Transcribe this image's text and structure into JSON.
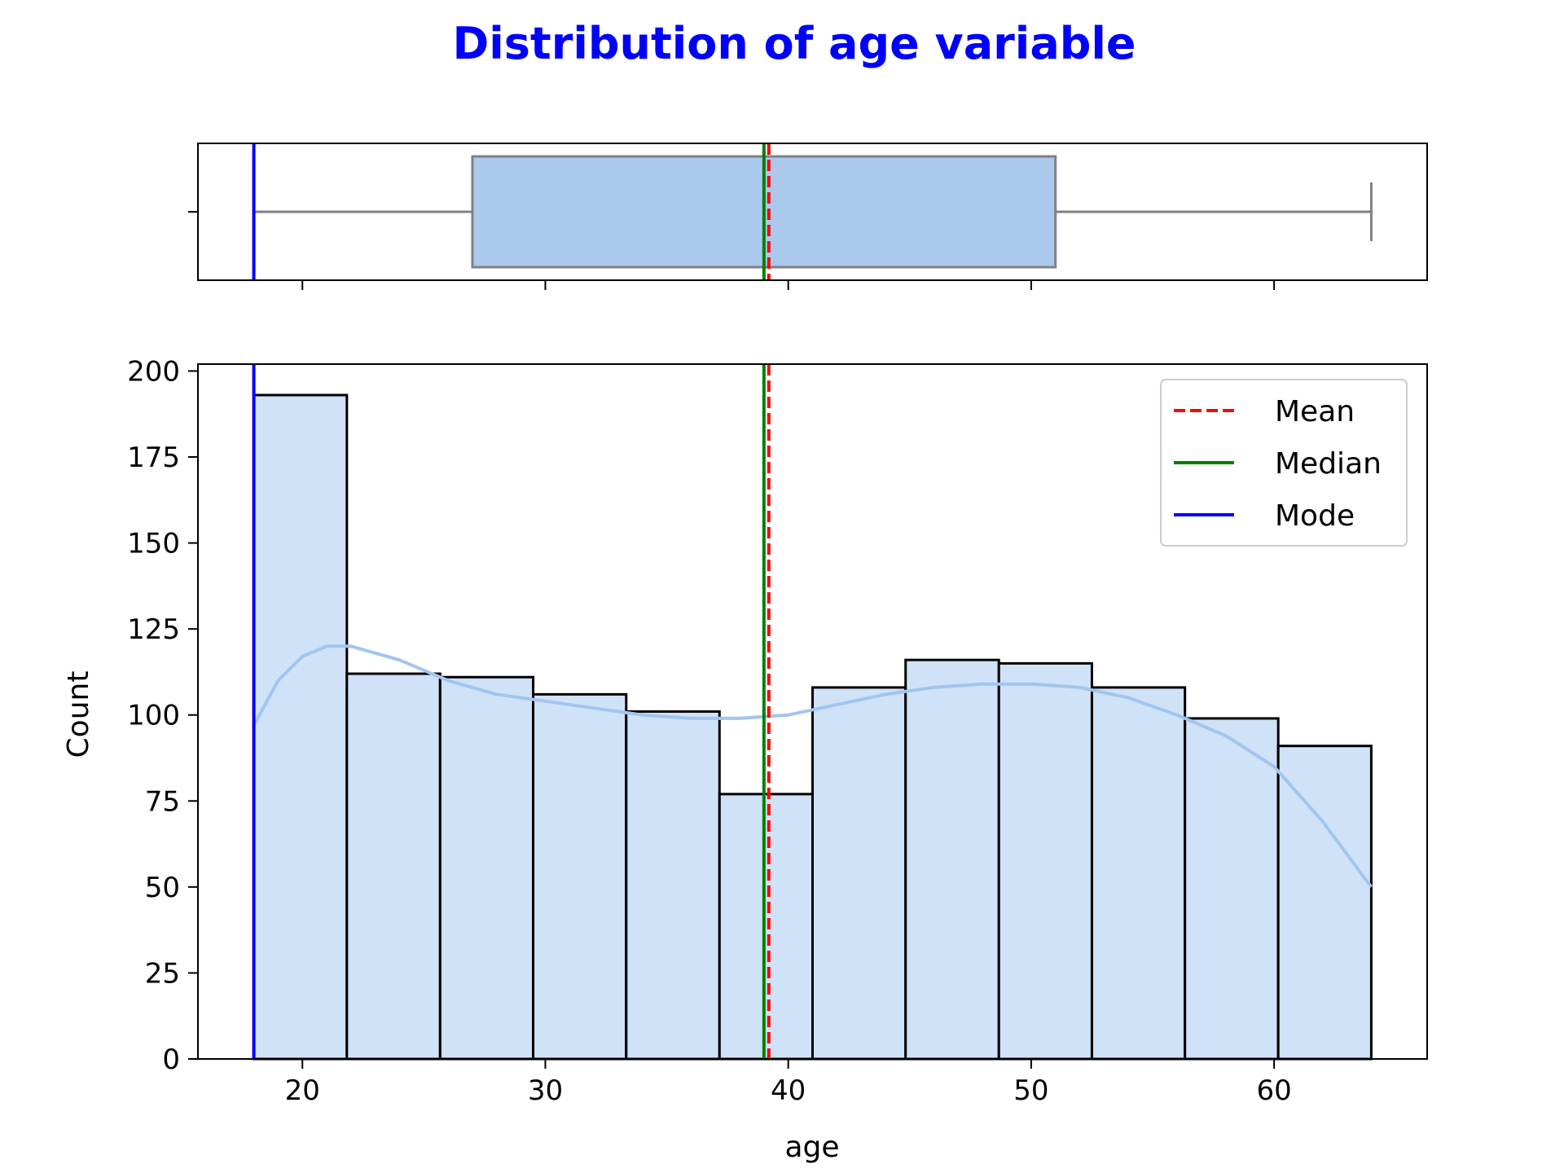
{
  "chart_data": {
    "title": "Distribution of age variable",
    "title_color": "#0000ff",
    "xlabel": "age",
    "ylabel": "Count",
    "xlim": [
      15.7,
      66.3
    ],
    "x_ticks": [
      20,
      30,
      40,
      50,
      60
    ],
    "histogram": {
      "type": "bar",
      "ylim": [
        0,
        202
      ],
      "y_ticks": [
        0,
        25,
        50,
        75,
        100,
        125,
        150,
        175,
        200
      ],
      "bin_edges": [
        18.0,
        21.83,
        25.67,
        29.5,
        33.33,
        37.17,
        41.0,
        44.83,
        48.67,
        52.5,
        56.33,
        60.17,
        64.0
      ],
      "counts": [
        193,
        112,
        111,
        106,
        101,
        77,
        108,
        116,
        115,
        108,
        99,
        91
      ],
      "fill_color": "#cfe2f7",
      "edge_color": "#000000"
    },
    "kde": {
      "type": "line",
      "x": [
        18,
        19,
        20,
        21,
        22,
        24,
        26,
        28,
        30,
        32,
        34,
        36,
        38,
        40,
        42,
        44,
        46,
        48,
        50,
        52,
        54,
        56,
        58,
        60,
        62,
        64
      ],
      "y": [
        97,
        110,
        117,
        120,
        120,
        116,
        110,
        106,
        104,
        102,
        100,
        99,
        99,
        100,
        103,
        106,
        108,
        109,
        109,
        108,
        105,
        100,
        94,
        85,
        69,
        50
      ],
      "color": "#a1c5ef"
    },
    "boxplot": {
      "min": 18,
      "q1": 27,
      "median": 39,
      "q3": 51,
      "max": 64,
      "fill_color": "#abc9ed",
      "line_color": "#808080"
    },
    "reference_lines": [
      {
        "name": "Mean",
        "x": 39.2,
        "color": "#ff0000",
        "style": "dashed"
      },
      {
        "name": "Median",
        "x": 39.0,
        "color": "#008000",
        "style": "solid"
      },
      {
        "name": "Mode",
        "x": 18.0,
        "color": "#0000ff",
        "style": "solid"
      }
    ],
    "legend": {
      "placement": "top-right",
      "entries": [
        "Mean",
        "Median",
        "Mode"
      ]
    }
  }
}
